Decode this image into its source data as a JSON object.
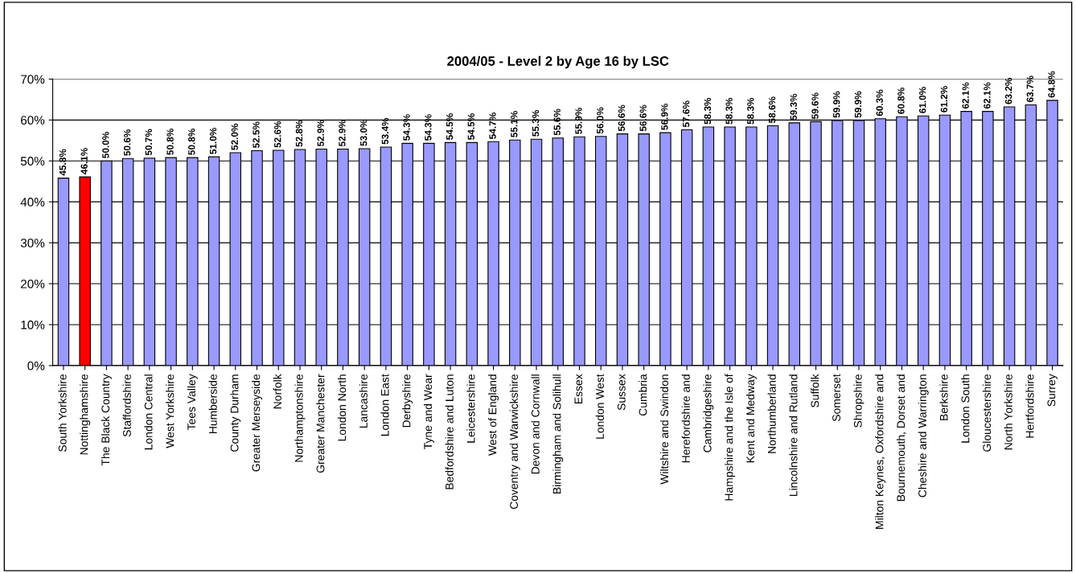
{
  "chart_data": {
    "type": "bar",
    "title": "2004/05 - Level 2 by Age 16 by LSC",
    "categories": [
      "South Yorkshire",
      "Nottinghamshire",
      "The Black Country",
      "Staffordshire",
      "London Central",
      "West Yorkshire",
      "Tees Valley",
      "Humberside",
      "County Durham",
      "Greater Merseyside",
      "Norfolk",
      "Northamptonshire",
      "Greater Manchester",
      "London North",
      "Lancashire",
      "London East",
      "Derbyshire",
      "Tyne and Wear",
      "Bedfordshire and Luton",
      "Leicestershire",
      "West of England",
      "Coventry and Warwickshire",
      "Devon and Cornwall",
      "Birmingham and Solihull",
      "Essex",
      "London West",
      "Sussex",
      "Cumbria",
      "Wiltshire and Swindon",
      "Herefordshire and",
      "Cambridgeshire",
      "Hampshire and the Isle of",
      "Kent and Medway",
      "Northumberland",
      "Lincolnshire and Rutland",
      "Suffolk",
      "Somerset",
      "Shropshire",
      "Milton Keynes, Oxfordshire and",
      "Bournemouth, Dorset and",
      "Cheshire and Warrington",
      "Berkshire",
      "London South",
      "Gloucestershire",
      "North Yorkshire",
      "Hertfordshire",
      "Surrey"
    ],
    "values": [
      45.8,
      46.1,
      50.0,
      50.6,
      50.7,
      50.8,
      50.8,
      51.0,
      52.0,
      52.5,
      52.6,
      52.8,
      52.9,
      52.9,
      53.0,
      53.4,
      54.3,
      54.3,
      54.5,
      54.5,
      54.7,
      55.1,
      55.3,
      55.6,
      55.9,
      56.0,
      56.6,
      56.6,
      56.9,
      57.6,
      58.3,
      58.3,
      58.3,
      58.6,
      59.3,
      59.6,
      59.9,
      59.9,
      60.3,
      60.8,
      61.0,
      61.2,
      62.1,
      62.1,
      63.2,
      63.7,
      64.8
    ],
    "value_labels": [
      "45.8%",
      "46.1%",
      "50.0%",
      "50.6%",
      "50.7%",
      "50.8%",
      "50.8%",
      "51.0%",
      "52.0%",
      "52.5%",
      "52.6%",
      "52.8%",
      "52.9%",
      "52.9%",
      "53.0%",
      "53.4%",
      "54.3%",
      "54.3%",
      "54.5%",
      "54.5%",
      "54.7%",
      "55.1%",
      "55.3%",
      "55.6%",
      "55.9%",
      "56.0%",
      "56.6%",
      "56.6%",
      "56.9%",
      "57.6%",
      "58.3%",
      "58.3%",
      "58.3%",
      "58.6%",
      "59.3%",
      "59.6%",
      "59.9%",
      "59.9%",
      "60.3%",
      "60.8%",
      "61.0%",
      "61.2%",
      "62.1%",
      "62.1%",
      "63.2%",
      "63.7%",
      "64.8%"
    ],
    "colors": [
      "#9999ff",
      "#ff0000",
      "#9999ff",
      "#9999ff",
      "#9999ff",
      "#9999ff",
      "#9999ff",
      "#9999ff",
      "#9999ff",
      "#9999ff",
      "#9999ff",
      "#9999ff",
      "#9999ff",
      "#9999ff",
      "#9999ff",
      "#9999ff",
      "#9999ff",
      "#9999ff",
      "#9999ff",
      "#9999ff",
      "#9999ff",
      "#9999ff",
      "#9999ff",
      "#9999ff",
      "#9999ff",
      "#9999ff",
      "#9999ff",
      "#9999ff",
      "#9999ff",
      "#9999ff",
      "#9999ff",
      "#9999ff",
      "#9999ff",
      "#9999ff",
      "#9999ff",
      "#9999ff",
      "#9999ff",
      "#9999ff",
      "#9999ff",
      "#9999ff",
      "#9999ff",
      "#9999ff",
      "#9999ff",
      "#9999ff",
      "#9999ff",
      "#9999ff",
      "#9999ff"
    ],
    "ylim": [
      0,
      70
    ],
    "yticks": [
      {
        "value": 0,
        "label": "0%"
      },
      {
        "value": 10,
        "label": "10%"
      },
      {
        "value": 20,
        "label": "20%"
      },
      {
        "value": 30,
        "label": "30%"
      },
      {
        "value": 40,
        "label": "40%"
      },
      {
        "value": 50,
        "label": "50%"
      },
      {
        "value": 60,
        "label": "60%"
      },
      {
        "value": 70,
        "label": "70%"
      }
    ],
    "grid": "y",
    "legend": false
  }
}
